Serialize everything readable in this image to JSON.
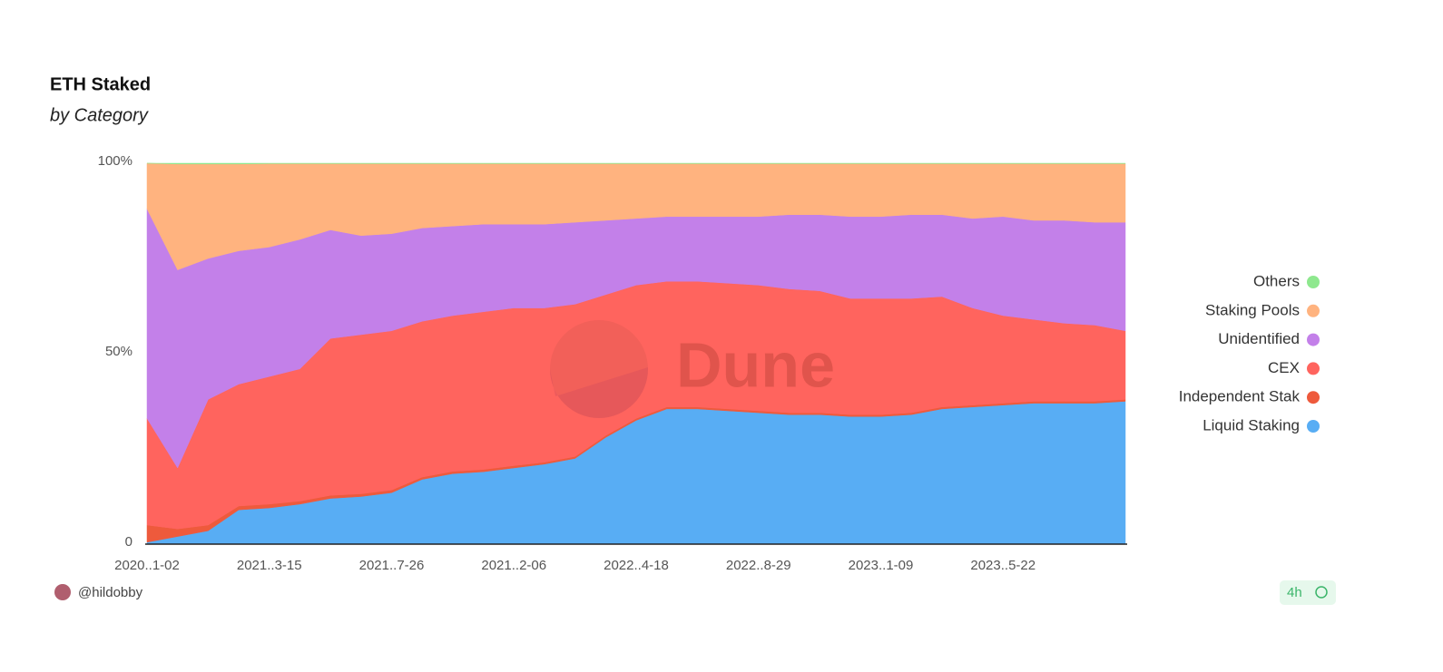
{
  "chart_data": {
    "type": "stacked-area-100",
    "title": "ETH Staked",
    "subtitle": "by Category",
    "watermark": "Dune",
    "author": "@hildobby",
    "refresh": "4h",
    "categories": [
      "2020..1-02",
      null,
      null,
      null,
      "2021..3-15",
      null,
      null,
      null,
      "2021..7-26",
      null,
      null,
      null,
      "2021..2-06",
      null,
      null,
      null,
      "2022..4-18",
      null,
      null,
      null,
      "2022..8-29",
      null,
      null,
      null,
      "2023..1-09",
      null,
      null,
      null,
      "2023..5-22",
      null,
      null,
      null,
      null
    ],
    "ylim": [
      0,
      100
    ],
    "yticks": [
      0,
      {
        "value": 50,
        "label": "50%"
      },
      {
        "value": 100,
        "label": "100%"
      }
    ],
    "series": [
      {
        "name": "Liquid Staking",
        "color": "#58adf4",
        "values": [
          0.5,
          2,
          3.5,
          9,
          9.5,
          10.5,
          12,
          12.5,
          13.5,
          17,
          18.5,
          19,
          20,
          21,
          22.5,
          28,
          32.5,
          35.5,
          35.5,
          35,
          34.5,
          34,
          34,
          33.5,
          33.5,
          34,
          35.5,
          36,
          36.5,
          37,
          37,
          37,
          37.5
        ]
      },
      {
        "name": "Independent Stak",
        "color": "#ee5a3c",
        "values": [
          4.5,
          2,
          1.5,
          1,
          1,
          0.8,
          0.8,
          0.7,
          0.7,
          0.6,
          0.6,
          0.6,
          0.6,
          0.5,
          0.5,
          0.5,
          0.5,
          0.5,
          0.5,
          0.5,
          0.5,
          0.5,
          0.5,
          0.5,
          0.5,
          0.5,
          0.5,
          0.5,
          0.5,
          0.5,
          0.5,
          0.5,
          0.5
        ]
      },
      {
        "name": "CEX",
        "color": "#ff645e",
        "values": [
          28,
          16,
          33,
          32,
          33.5,
          34.7,
          41.2,
          41.8,
          41.8,
          40.9,
          40.9,
          41.4,
          41.4,
          40.5,
          40,
          37,
          35,
          33,
          33,
          33,
          33,
          32.5,
          32,
          30.5,
          30.5,
          30,
          29,
          25.5,
          23,
          21.5,
          20.5,
          20,
          18
        ]
      },
      {
        "name": "Unidentified",
        "color": "#c380e9",
        "values": [
          55,
          52,
          37,
          35,
          34,
          34,
          28.5,
          26,
          25.5,
          24.5,
          23.5,
          23,
          22,
          22,
          21.5,
          19.5,
          17.5,
          17,
          17,
          17.5,
          18,
          19.5,
          20,
          21.5,
          21.5,
          22,
          21.5,
          23.5,
          26,
          26,
          27,
          27,
          28.5
        ]
      },
      {
        "name": "Staking Pools",
        "color": "#ffb37f",
        "values": [
          12,
          27.8,
          24.8,
          22.8,
          21.9,
          19.9,
          17.4,
          18.9,
          18.4,
          16.9,
          16.4,
          15.9,
          15.9,
          15.9,
          15.4,
          14.9,
          14.4,
          13.9,
          13.9,
          13.9,
          13.9,
          13.4,
          13.4,
          13.9,
          13.9,
          13.4,
          13.4,
          14.4,
          13.9,
          14.9,
          14.9,
          15.4,
          15.4
        ]
      },
      {
        "name": "Others",
        "color": "#8ee88e",
        "values": [
          0,
          0.2,
          0.2,
          0.2,
          0.1,
          0.1,
          0.1,
          0.1,
          0.1,
          0.1,
          0.1,
          0.1,
          0.1,
          0.1,
          0.1,
          0.1,
          0.1,
          0.1,
          0.1,
          0.1,
          0.1,
          0.1,
          0.1,
          0.1,
          0.1,
          0.1,
          0.1,
          0.1,
          0.1,
          0.1,
          0.1,
          0.1,
          0.1
        ]
      }
    ]
  }
}
